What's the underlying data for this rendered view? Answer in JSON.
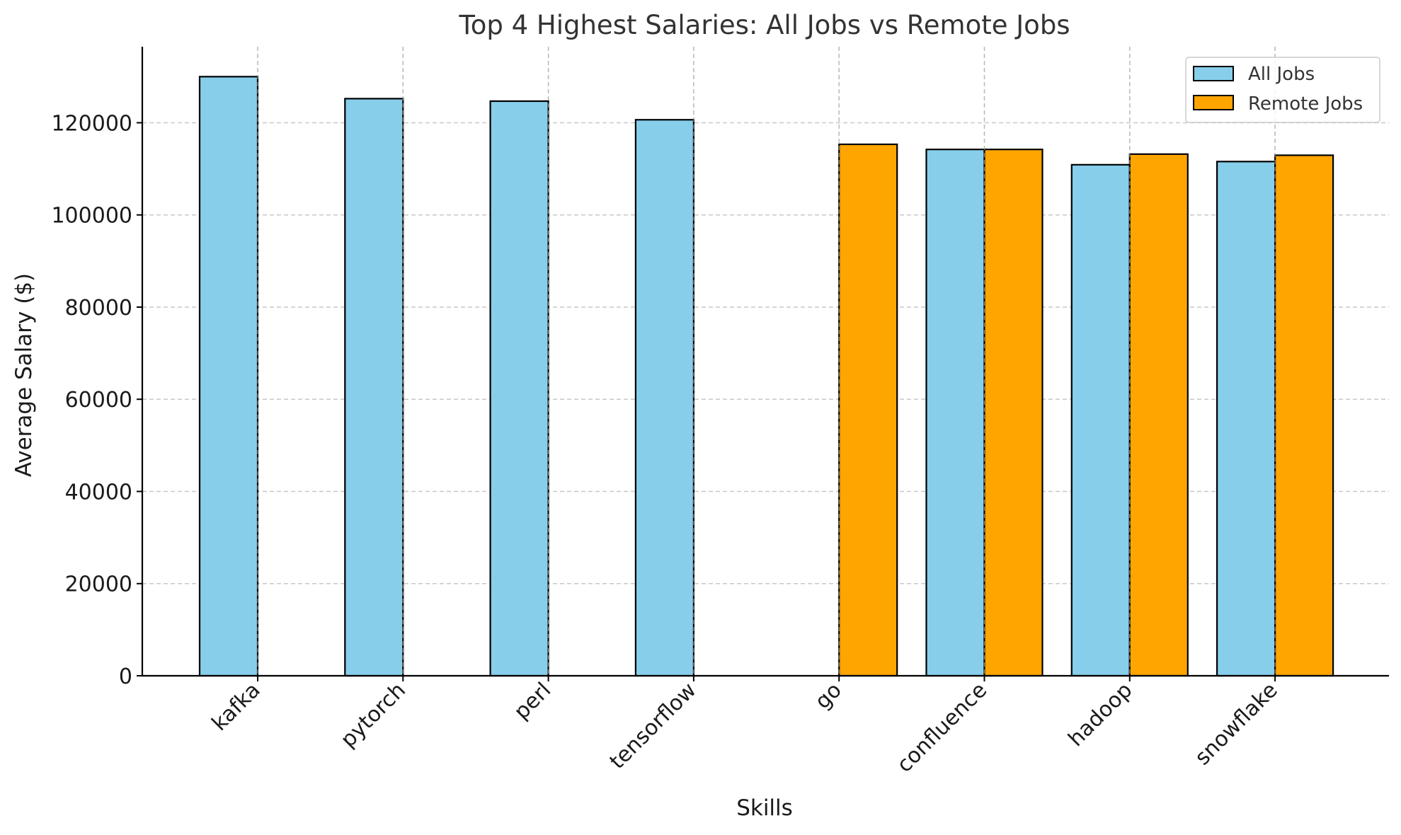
{
  "chart_data": {
    "type": "bar",
    "title": "Top 4 Highest Salaries: All Jobs vs Remote Jobs",
    "xlabel": "Skills",
    "ylabel": "Average Salary ($)",
    "categories": [
      "kafka",
      "pytorch",
      "perl",
      "tensorflow",
      "go",
      "confluence",
      "hadoop",
      "snowflake"
    ],
    "series": [
      {
        "name": "All Jobs",
        "color": "#87ceeb",
        "values": [
          130000,
          125226,
          124686,
          120647,
          null,
          114210,
          110888,
          111578
        ]
      },
      {
        "name": "Remote Jobs",
        "color": "#ffa500",
        "values": [
          null,
          null,
          null,
          null,
          115320,
          114210,
          113193,
          112948
        ]
      }
    ],
    "ylim": [
      0,
      136500
    ],
    "yticks": [
      0,
      20000,
      40000,
      60000,
      80000,
      100000,
      120000
    ],
    "grid": true,
    "legend_position": "top-right"
  }
}
